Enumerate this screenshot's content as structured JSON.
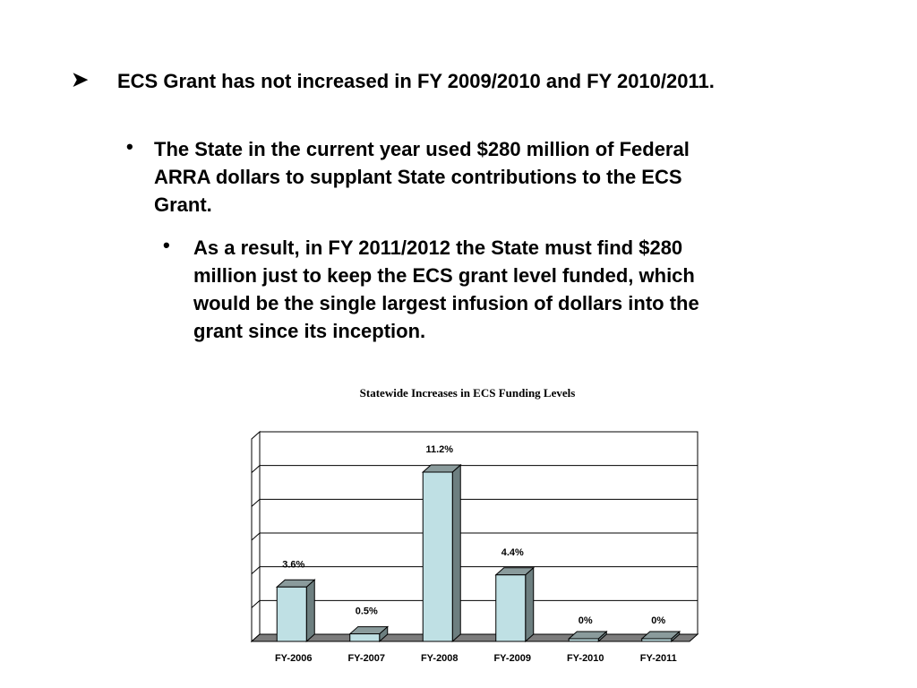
{
  "slide": {
    "heading": "ECS Grant has not increased in FY 2009/2010 and FY 2010/2011.",
    "bullet1_lines": [
      "The State in the current year used $280 million of Federal",
      "ARRA dollars to supplant State contributions to the ECS",
      "Grant."
    ],
    "bullet2_lines": [
      "As a result, in FY 2011/2012 the State must find $280",
      "million just to keep the ECS grant level funded, which",
      "would be the single largest infusion of dollars into the",
      "grant since its inception."
    ],
    "heading_icon": "arrowhead-bullet-icon",
    "bullet_icon": "round-bullet-icon"
  },
  "chart_data": {
    "type": "bar",
    "title": "Statewide Increases in ECS Funding Levels",
    "categories": [
      "FY-2006",
      "FY-2007",
      "FY-2008",
      "FY-2009",
      "FY-2010",
      "FY-2011"
    ],
    "values": [
      3.6,
      0.5,
      11.2,
      4.4,
      0,
      0
    ],
    "data_labels": [
      "3.6%",
      "0.5%",
      "11.2%",
      "4.4%",
      "0%",
      "0%"
    ],
    "ylim": [
      0,
      12
    ],
    "grid": true,
    "legend": "none",
    "colors": {
      "bar_front": "#bfe0e4",
      "bar_side": "#6d7f80",
      "bar_top": "#8a9b9c",
      "floor": "#7c7c7c"
    }
  }
}
